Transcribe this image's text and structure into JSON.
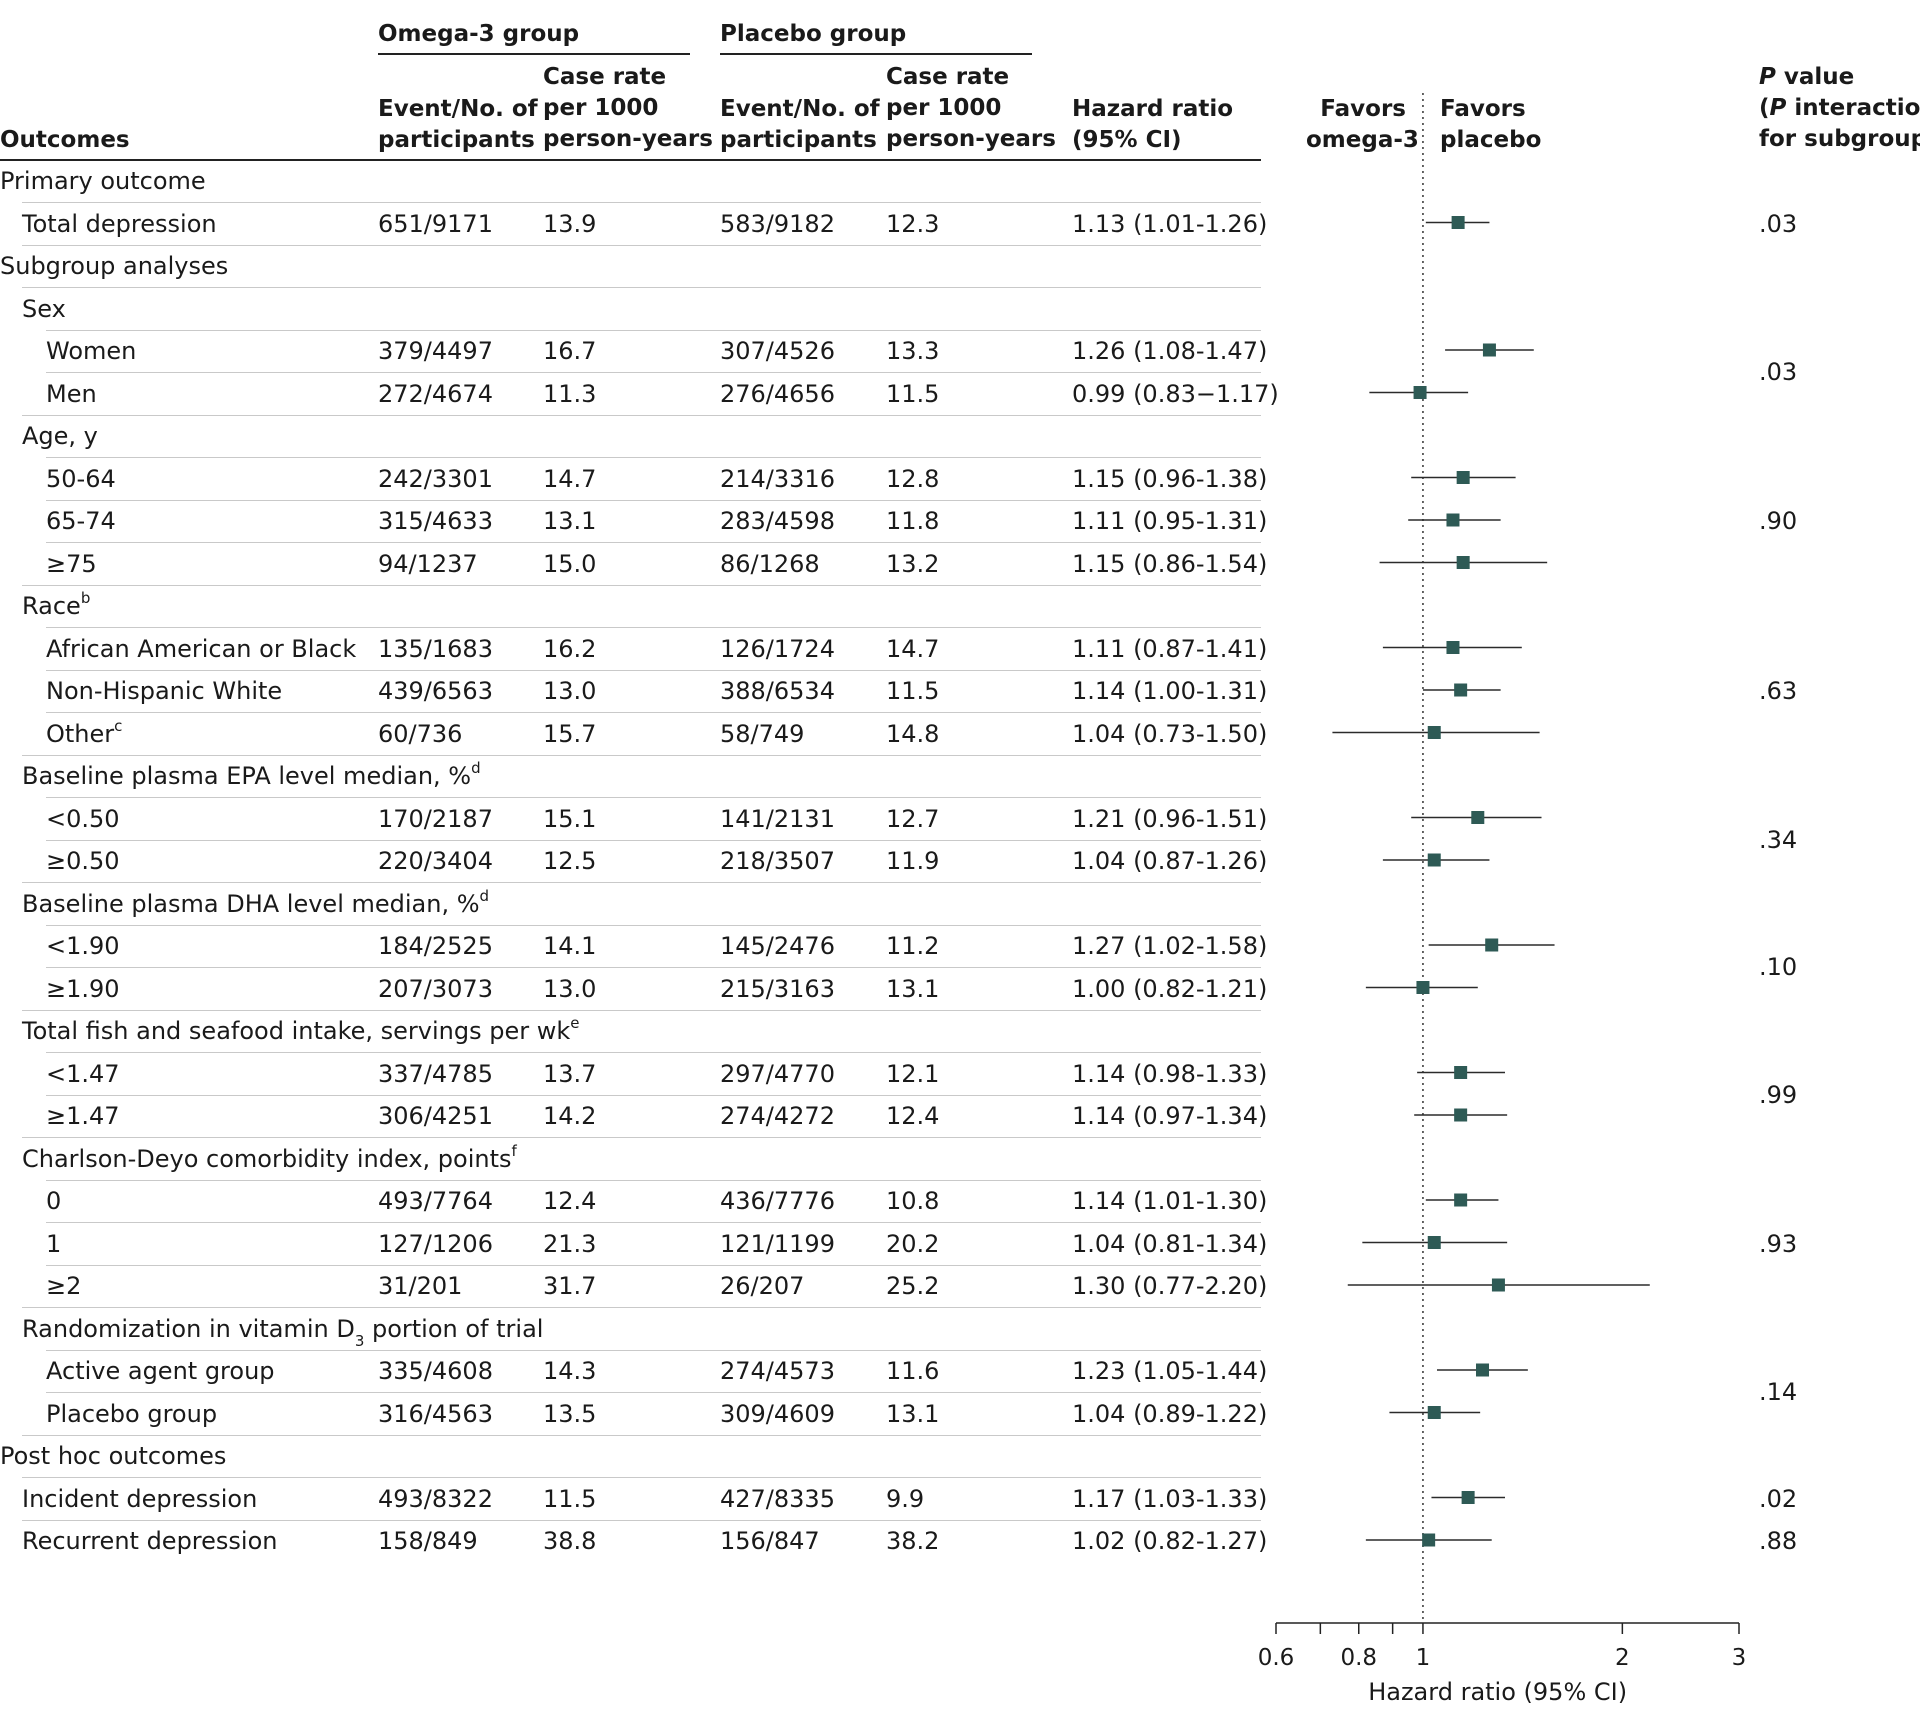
{
  "headers": {
    "outcomes": "Outcomes",
    "omega_group": "Omega-3 group",
    "placebo_group": "Placebo group",
    "events_col": "Event/No. of\nparticipants",
    "rate_col": "Case rate\nper 1000\nperson-years",
    "hr_col": "Hazard ratio\n(95% CI)",
    "favors_omega": "Favors\nomega-3",
    "favors_placebo": "Favors\nplacebo",
    "pvalue_p": "P",
    "pvalue_rest1": " value",
    "pvalue_p2": "P",
    "pvalue_rest2": " interaction",
    "pvalue_rest3": "for subgroups)",
    "pvalue_open": "("
  },
  "rows": [
    {
      "label": "Primary outcome",
      "level": 0,
      "kind": "section"
    },
    {
      "label": "Total depression",
      "level": 1,
      "kind": "data",
      "omega_events": "651/9171",
      "omega_rate": "13.9",
      "placebo_events": "583/9182",
      "placebo_rate": "12.3",
      "hr_text": "1.13 (1.01-1.26)"
    },
    {
      "label": "Subgroup analyses",
      "level": 0,
      "kind": "section"
    },
    {
      "label": "Sex",
      "level": 1,
      "kind": "group"
    },
    {
      "label": "Women",
      "level": 2,
      "kind": "data",
      "omega_events": "379/4497",
      "omega_rate": "16.7",
      "placebo_events": "307/4526",
      "placebo_rate": "13.3",
      "hr_text": "1.26 (1.08-1.47)"
    },
    {
      "label": "Men",
      "level": 2,
      "kind": "data",
      "omega_events": "272/4674",
      "omega_rate": "11.3",
      "placebo_events": "276/4656",
      "placebo_rate": "11.5",
      "hr_text": "0.99 (0.83−1.17)"
    },
    {
      "label": "Age, y",
      "level": 1,
      "kind": "group"
    },
    {
      "label": "50-64",
      "level": 2,
      "kind": "data",
      "omega_events": "242/3301",
      "omega_rate": "14.7",
      "placebo_events": "214/3316",
      "placebo_rate": "12.8",
      "hr_text": "1.15 (0.96-1.38)"
    },
    {
      "label": "65-74",
      "level": 2,
      "kind": "data",
      "omega_events": "315/4633",
      "omega_rate": "13.1",
      "placebo_events": "283/4598",
      "placebo_rate": "11.8",
      "hr_text": "1.11 (0.95-1.31)"
    },
    {
      "label": "≥75",
      "level": 2,
      "kind": "data",
      "omega_events": "94/1237",
      "omega_rate": "15.0",
      "placebo_events": "86/1268",
      "placebo_rate": "13.2",
      "hr_text": "1.15 (0.86-1.54)"
    },
    {
      "label": "Race",
      "sup": "b",
      "level": 1,
      "kind": "group"
    },
    {
      "label": "African American or Black",
      "level": 2,
      "kind": "data",
      "omega_events": "135/1683",
      "omega_rate": "16.2",
      "placebo_events": "126/1724",
      "placebo_rate": "14.7",
      "hr_text": "1.11 (0.87-1.41)"
    },
    {
      "label": "Non-Hispanic White",
      "level": 2,
      "kind": "data",
      "omega_events": "439/6563",
      "omega_rate": "13.0",
      "placebo_events": "388/6534",
      "placebo_rate": "11.5",
      "hr_text": "1.14 (1.00-1.31)"
    },
    {
      "label": "Other",
      "sup": "c",
      "level": 2,
      "kind": "data",
      "omega_events": "60/736",
      "omega_rate": "15.7",
      "placebo_events": "58/749",
      "placebo_rate": "14.8",
      "hr_text": "1.04 (0.73-1.50)"
    },
    {
      "label": "Baseline plasma EPA level median, %",
      "sup": "d",
      "level": 1,
      "kind": "group"
    },
    {
      "label": "<0.50",
      "level": 2,
      "kind": "data",
      "omega_events": "170/2187",
      "omega_rate": "15.1",
      "placebo_events": "141/2131",
      "placebo_rate": "12.7",
      "hr_text": "1.21 (0.96-1.51)"
    },
    {
      "label": "≥0.50",
      "level": 2,
      "kind": "data",
      "omega_events": "220/3404",
      "omega_rate": "12.5",
      "placebo_events": "218/3507",
      "placebo_rate": "11.9",
      "hr_text": "1.04 (0.87-1.26)"
    },
    {
      "label": "Baseline plasma DHA level median, %",
      "sup": "d",
      "level": 1,
      "kind": "group"
    },
    {
      "label": "<1.90",
      "level": 2,
      "kind": "data",
      "omega_events": "184/2525",
      "omega_rate": "14.1",
      "placebo_events": "145/2476",
      "placebo_rate": "11.2",
      "hr_text": "1.27 (1.02-1.58)"
    },
    {
      "label": "≥1.90",
      "level": 2,
      "kind": "data",
      "omega_events": "207/3073",
      "omega_rate": "13.0",
      "placebo_events": "215/3163",
      "placebo_rate": "13.1",
      "hr_text": "1.00 (0.82-1.21)"
    },
    {
      "label": "Total fish and seafood intake, servings per wk",
      "sup": "e",
      "level": 1,
      "kind": "group"
    },
    {
      "label": "<1.47",
      "level": 2,
      "kind": "data",
      "omega_events": "337/4785",
      "omega_rate": "13.7",
      "placebo_events": "297/4770",
      "placebo_rate": "12.1",
      "hr_text": "1.14 (0.98-1.33)"
    },
    {
      "label": "≥1.47",
      "level": 2,
      "kind": "data",
      "omega_events": "306/4251",
      "omega_rate": "14.2",
      "placebo_events": "274/4272",
      "placebo_rate": "12.4",
      "hr_text": "1.14 (0.97-1.34)"
    },
    {
      "label": "Charlson-Deyo comorbidity index, points",
      "sup": "f",
      "level": 1,
      "kind": "group"
    },
    {
      "label": "0",
      "level": 2,
      "kind": "data",
      "omega_events": "493/7764",
      "omega_rate": "12.4",
      "placebo_events": "436/7776",
      "placebo_rate": "10.8",
      "hr_text": "1.14 (1.01-1.30)"
    },
    {
      "label": "1",
      "level": 2,
      "kind": "data",
      "omega_events": "127/1206",
      "omega_rate": "21.3",
      "placebo_events": "121/1199",
      "placebo_rate": "20.2",
      "hr_text": "1.04 (0.81-1.34)"
    },
    {
      "label": "≥2",
      "level": 2,
      "kind": "data",
      "omega_events": "31/201",
      "omega_rate": "31.7",
      "placebo_events": "26/207",
      "placebo_rate": "25.2",
      "hr_text": "1.30 (0.77-2.20)"
    },
    {
      "label": "Randomization in vitamin D",
      "sub": "3",
      "label_after": " portion of trial",
      "level": 1,
      "kind": "group"
    },
    {
      "label": "Active agent group",
      "level": 2,
      "kind": "data",
      "omega_events": "335/4608",
      "omega_rate": "14.3",
      "placebo_events": "274/4573",
      "placebo_rate": "11.6",
      "hr_text": "1.23 (1.05-1.44)"
    },
    {
      "label": "Placebo group",
      "level": 2,
      "kind": "data",
      "omega_events": "316/4563",
      "omega_rate": "13.5",
      "placebo_events": "309/4609",
      "placebo_rate": "13.1",
      "hr_text": "1.04 (0.89-1.22)"
    },
    {
      "label": "Post hoc outcomes",
      "level": 0,
      "kind": "section"
    },
    {
      "label": "Incident depression",
      "level": 1,
      "kind": "data",
      "omega_events": "493/8322",
      "omega_rate": "11.5",
      "placebo_events": "427/8335",
      "placebo_rate": "9.9",
      "hr_text": "1.17 (1.03-1.33)"
    },
    {
      "label": "Recurrent depression",
      "level": 1,
      "kind": "data",
      "omega_events": "158/849",
      "omega_rate": "38.8",
      "placebo_events": "156/847",
      "placebo_rate": "38.2",
      "hr_text": "1.02 (0.82-1.27)"
    }
  ],
  "p_values": [
    {
      "text": ".03",
      "rows": [
        1
      ]
    },
    {
      "text": ".03",
      "rows": [
        4,
        5
      ]
    },
    {
      "text": ".90",
      "rows": [
        7,
        8,
        9
      ]
    },
    {
      "text": ".63",
      "rows": [
        11,
        12,
        13
      ]
    },
    {
      "text": ".34",
      "rows": [
        15,
        16
      ]
    },
    {
      "text": ".10",
      "rows": [
        18,
        19
      ]
    },
    {
      "text": ".99",
      "rows": [
        21,
        22
      ]
    },
    {
      "text": ".93",
      "rows": [
        24,
        25,
        26
      ]
    },
    {
      "text": ".14",
      "rows": [
        28,
        29
      ]
    },
    {
      "text": ".02",
      "rows": [
        31
      ]
    },
    {
      "text": ".88",
      "rows": [
        32
      ]
    }
  ],
  "chart_data": {
    "type": "forest",
    "x_scale": "log",
    "xlim": [
      0.6,
      3
    ],
    "xticks": [
      0.6,
      0.8,
      1,
      2,
      3
    ],
    "xtick_labels": [
      "0.6",
      "0.8",
      "1",
      "2",
      "3"
    ],
    "minor_ticks": [
      0.7,
      0.9
    ],
    "reference_line": 1,
    "xlabel": "Hazard ratio (95% CI)",
    "marker_color": "#2e5a55",
    "points": [
      {
        "row": 1,
        "hr": 1.13,
        "lo": 1.01,
        "hi": 1.26
      },
      {
        "row": 4,
        "hr": 1.26,
        "lo": 1.08,
        "hi": 1.47
      },
      {
        "row": 5,
        "hr": 0.99,
        "lo": 0.83,
        "hi": 1.17
      },
      {
        "row": 7,
        "hr": 1.15,
        "lo": 0.96,
        "hi": 1.38
      },
      {
        "row": 8,
        "hr": 1.11,
        "lo": 0.95,
        "hi": 1.31
      },
      {
        "row": 9,
        "hr": 1.15,
        "lo": 0.86,
        "hi": 1.54
      },
      {
        "row": 11,
        "hr": 1.11,
        "lo": 0.87,
        "hi": 1.41
      },
      {
        "row": 12,
        "hr": 1.14,
        "lo": 1.0,
        "hi": 1.31
      },
      {
        "row": 13,
        "hr": 1.04,
        "lo": 0.73,
        "hi": 1.5
      },
      {
        "row": 15,
        "hr": 1.21,
        "lo": 0.96,
        "hi": 1.51
      },
      {
        "row": 16,
        "hr": 1.04,
        "lo": 0.87,
        "hi": 1.26
      },
      {
        "row": 18,
        "hr": 1.27,
        "lo": 1.02,
        "hi": 1.58
      },
      {
        "row": 19,
        "hr": 1.0,
        "lo": 0.82,
        "hi": 1.21
      },
      {
        "row": 21,
        "hr": 1.14,
        "lo": 0.98,
        "hi": 1.33
      },
      {
        "row": 22,
        "hr": 1.14,
        "lo": 0.97,
        "hi": 1.34
      },
      {
        "row": 24,
        "hr": 1.14,
        "lo": 1.01,
        "hi": 1.3
      },
      {
        "row": 25,
        "hr": 1.04,
        "lo": 0.81,
        "hi": 1.34
      },
      {
        "row": 26,
        "hr": 1.3,
        "lo": 0.77,
        "hi": 2.2
      },
      {
        "row": 28,
        "hr": 1.23,
        "lo": 1.05,
        "hi": 1.44
      },
      {
        "row": 29,
        "hr": 1.04,
        "lo": 0.89,
        "hi": 1.22
      },
      {
        "row": 31,
        "hr": 1.17,
        "lo": 1.03,
        "hi": 1.33
      },
      {
        "row": 32,
        "hr": 1.02,
        "lo": 0.82,
        "hi": 1.27
      }
    ]
  }
}
